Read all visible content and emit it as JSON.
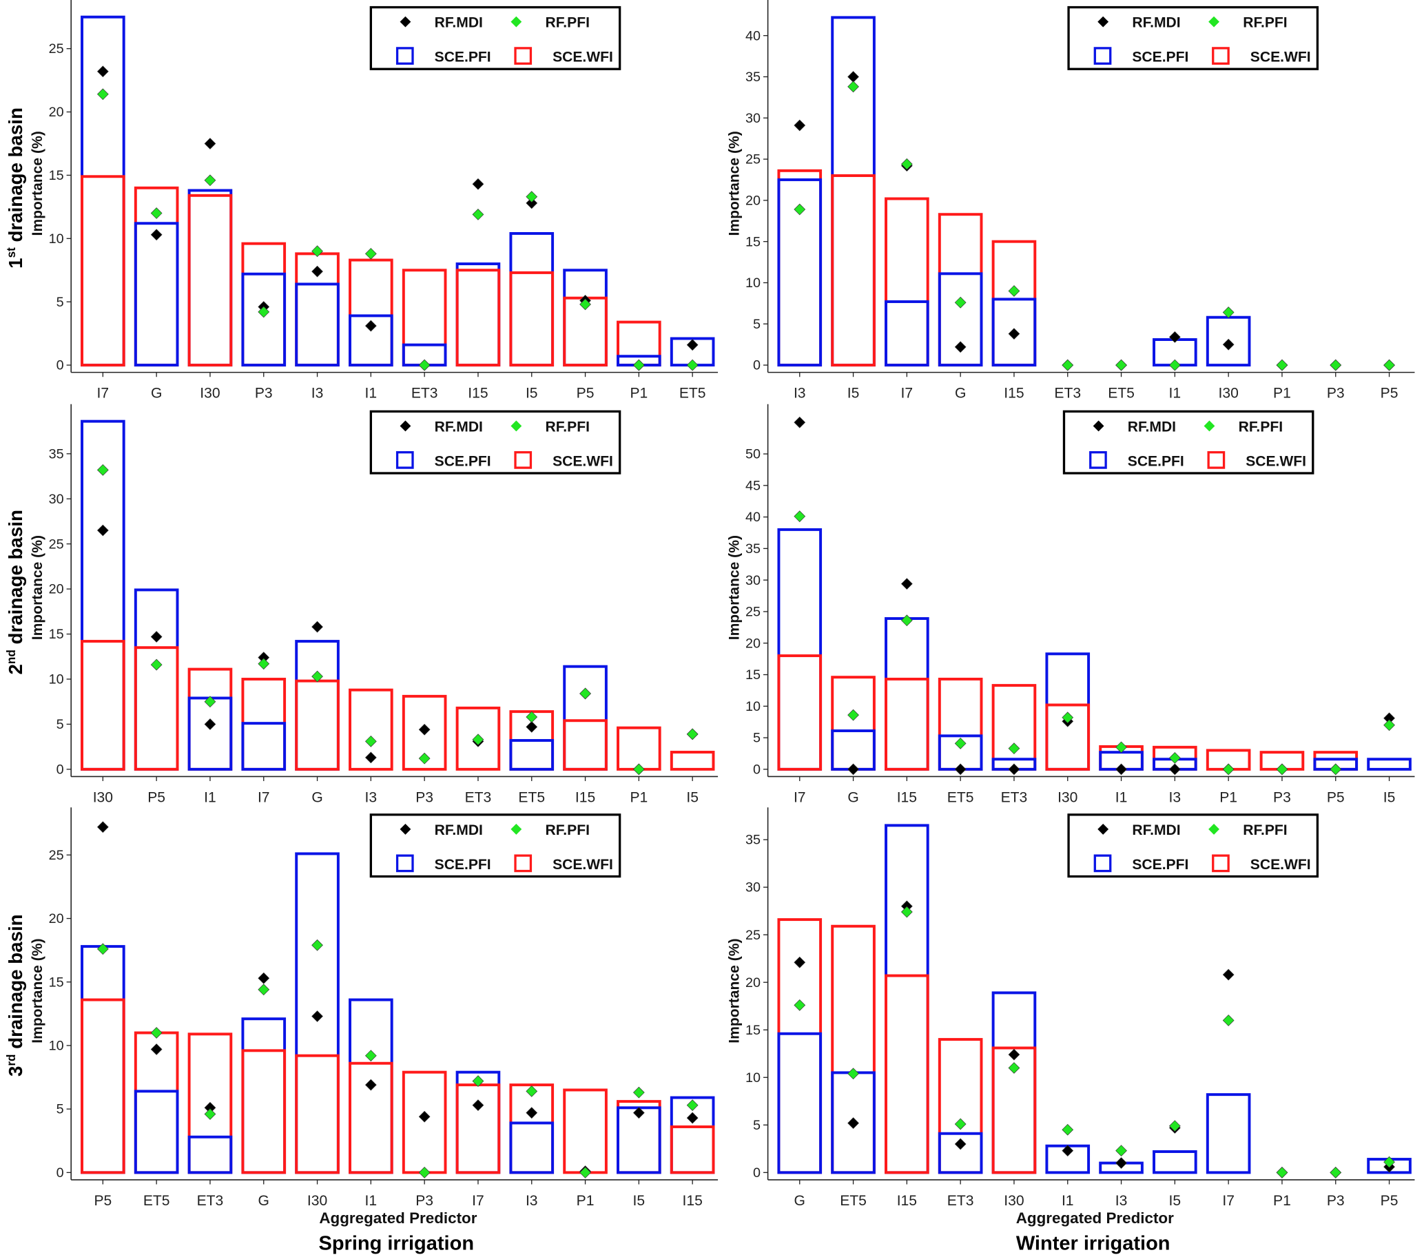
{
  "colors": {
    "sce_pfi": "#0a14e6",
    "sce_wfi": "#ff1a1a",
    "rf_mdi": "#000000",
    "rf_pfi": "#22e622"
  },
  "legend": {
    "rf_mdi": "RF.MDI",
    "rf_pfi": "RF.PFI",
    "sce_pfi": "SCE.PFI",
    "sce_wfi": "SCE.WFI"
  },
  "labels": {
    "ylabel": "Importance (%)",
    "xlabel": "Aggregated Predictor",
    "rows": [
      {
        "num": "1",
        "sup": "st",
        "text": " drainage basin"
      },
      {
        "num": "2",
        "sup": "nd",
        "text": " drainage basin"
      },
      {
        "num": "3",
        "sup": "rd",
        "text": " drainage basin"
      }
    ],
    "columns": [
      "Spring irrigation",
      "Winter irrigation"
    ]
  },
  "chart_data": [
    {
      "type": "bar",
      "row": 1,
      "column": "Spring irrigation",
      "ylim": [
        0,
        28.7
      ],
      "yticks": [
        0,
        5,
        10,
        15,
        20,
        25
      ],
      "categories": [
        "I7",
        "G",
        "I30",
        "P3",
        "I3",
        "I1",
        "ET3",
        "I15",
        "I5",
        "P5",
        "P1",
        "ET5"
      ],
      "series": [
        {
          "name": "SCE.PFI",
          "values": [
            27.5,
            11.2,
            13.8,
            7.2,
            6.4,
            3.9,
            1.6,
            8.0,
            10.4,
            7.5,
            0.7,
            2.1
          ]
        },
        {
          "name": "SCE.WFI",
          "values": [
            14.9,
            14.0,
            13.4,
            9.6,
            8.8,
            8.3,
            7.5,
            7.5,
            7.3,
            5.3,
            3.4,
            0
          ]
        },
        {
          "name": "RF.MDI",
          "values": [
            23.2,
            10.3,
            17.5,
            4.6,
            7.4,
            3.1,
            0,
            14.3,
            12.8,
            5.1,
            0,
            1.6
          ]
        },
        {
          "name": "RF.PFI",
          "values": [
            21.4,
            12.0,
            14.6,
            4.2,
            9.0,
            8.8,
            0,
            11.9,
            13.3,
            4.8,
            0,
            0
          ]
        }
      ]
    },
    {
      "type": "bar",
      "row": 1,
      "column": "Winter irrigation",
      "ylim": [
        0,
        44.1
      ],
      "yticks": [
        0,
        5,
        10,
        15,
        20,
        25,
        30,
        35,
        40
      ],
      "categories": [
        "I3",
        "I5",
        "I7",
        "G",
        "I15",
        "ET3",
        "ET5",
        "I1",
        "I30",
        "P1",
        "P3",
        "P5"
      ],
      "series": [
        {
          "name": "SCE.PFI",
          "values": [
            22.5,
            42.2,
            7.7,
            11.1,
            8.0,
            0,
            0,
            3.1,
            5.8,
            0,
            0,
            0
          ]
        },
        {
          "name": "SCE.WFI",
          "values": [
            23.6,
            23.0,
            20.2,
            18.3,
            15.0,
            0,
            0,
            0,
            0,
            0,
            0,
            0
          ]
        },
        {
          "name": "RF.MDI",
          "values": [
            29.1,
            35.0,
            24.2,
            2.2,
            3.8,
            0,
            0,
            3.4,
            2.5,
            0,
            0,
            0
          ]
        },
        {
          "name": "RF.PFI",
          "values": [
            18.9,
            33.8,
            24.4,
            7.6,
            9.0,
            0,
            0,
            0,
            6.4,
            0,
            0,
            0
          ]
        }
      ]
    },
    {
      "type": "bar",
      "row": 2,
      "column": "Spring irrigation",
      "ylim": [
        0,
        40.3
      ],
      "yticks": [
        0,
        5,
        10,
        15,
        20,
        25,
        30,
        35
      ],
      "categories": [
        "I30",
        "P5",
        "I1",
        "I7",
        "G",
        "I3",
        "P3",
        "ET3",
        "ET5",
        "I15",
        "P1",
        "I5"
      ],
      "series": [
        {
          "name": "SCE.PFI",
          "values": [
            38.6,
            19.9,
            7.9,
            5.1,
            14.2,
            0,
            0,
            0,
            3.2,
            11.4,
            0,
            0
          ]
        },
        {
          "name": "SCE.WFI",
          "values": [
            14.2,
            13.5,
            11.1,
            10.0,
            9.8,
            8.8,
            8.1,
            6.8,
            6.4,
            5.4,
            4.6,
            1.9
          ]
        },
        {
          "name": "RF.MDI",
          "values": [
            26.5,
            14.7,
            5.0,
            12.4,
            15.8,
            1.3,
            4.4,
            3.1,
            4.7,
            8.4,
            0,
            3.9
          ]
        },
        {
          "name": "RF.PFI",
          "values": [
            33.2,
            11.6,
            7.5,
            11.7,
            10.3,
            3.1,
            1.2,
            3.3,
            5.8,
            8.4,
            0,
            3.9
          ]
        }
      ]
    },
    {
      "type": "bar",
      "row": 2,
      "column": "Winter irrigation",
      "ylim": [
        0,
        57.6
      ],
      "yticks": [
        0,
        5,
        10,
        15,
        20,
        25,
        30,
        35,
        40,
        45,
        50
      ],
      "categories": [
        "I7",
        "G",
        "I15",
        "ET5",
        "ET3",
        "I30",
        "I1",
        "I3",
        "P1",
        "P3",
        "P5",
        "I5"
      ],
      "series": [
        {
          "name": "SCE.PFI",
          "values": [
            38.0,
            6.1,
            23.9,
            5.3,
            1.6,
            18.3,
            2.7,
            1.6,
            0,
            0,
            1.6,
            1.6
          ]
        },
        {
          "name": "SCE.WFI",
          "values": [
            18.0,
            14.6,
            14.3,
            14.3,
            13.3,
            10.2,
            3.6,
            3.5,
            3.0,
            2.7,
            2.7,
            0
          ]
        },
        {
          "name": "RF.MDI",
          "values": [
            55.0,
            0,
            29.4,
            0,
            0,
            7.6,
            0,
            0,
            0,
            0,
            0,
            8.1
          ]
        },
        {
          "name": "RF.PFI",
          "values": [
            40.1,
            8.6,
            23.6,
            4.1,
            3.3,
            8.2,
            3.5,
            1.8,
            0,
            0,
            0,
            7.0
          ]
        }
      ]
    },
    {
      "type": "bar",
      "row": 3,
      "column": "Spring irrigation",
      "ylim": [
        0,
        28.6
      ],
      "yticks": [
        0,
        5,
        10,
        15,
        20,
        25
      ],
      "categories": [
        "P5",
        "ET5",
        "ET3",
        "G",
        "I30",
        "I1",
        "P3",
        "I7",
        "I3",
        "P1",
        "I5",
        "I15"
      ],
      "series": [
        {
          "name": "SCE.PFI",
          "values": [
            17.8,
            6.4,
            2.8,
            12.1,
            25.1,
            13.6,
            0,
            7.9,
            3.9,
            0,
            5.1,
            5.9
          ]
        },
        {
          "name": "SCE.WFI",
          "values": [
            13.6,
            11.0,
            10.9,
            9.6,
            9.2,
            8.6,
            7.9,
            6.9,
            6.9,
            6.5,
            5.6,
            3.6
          ]
        },
        {
          "name": "RF.MDI",
          "values": [
            27.2,
            9.7,
            5.1,
            15.3,
            12.3,
            6.9,
            4.4,
            5.3,
            4.7,
            0.1,
            4.7,
            4.3
          ]
        },
        {
          "name": "RF.PFI",
          "values": [
            17.6,
            11.0,
            4.6,
            14.4,
            17.9,
            9.2,
            0,
            7.2,
            6.4,
            0,
            6.3,
            5.3
          ]
        }
      ]
    },
    {
      "type": "bar",
      "row": 3,
      "column": "Winter irrigation",
      "ylim": [
        0,
        38.2
      ],
      "yticks": [
        0,
        5,
        10,
        15,
        20,
        25,
        30,
        35
      ],
      "categories": [
        "G",
        "ET5",
        "I15",
        "ET3",
        "I30",
        "I1",
        "I3",
        "I5",
        "I7",
        "P1",
        "P3",
        "P5"
      ],
      "series": [
        {
          "name": "SCE.PFI",
          "values": [
            14.6,
            10.5,
            36.5,
            4.1,
            18.9,
            2.8,
            1.0,
            2.2,
            8.2,
            0,
            0,
            1.4
          ]
        },
        {
          "name": "SCE.WFI",
          "values": [
            26.6,
            25.9,
            20.7,
            14.0,
            13.1,
            0,
            0,
            0,
            0,
            0,
            0,
            0
          ]
        },
        {
          "name": "RF.MDI",
          "values": [
            22.1,
            5.2,
            28.0,
            3.0,
            12.4,
            2.3,
            1.0,
            4.7,
            20.8,
            0,
            0,
            0.6
          ]
        },
        {
          "name": "RF.PFI",
          "values": [
            17.6,
            10.4,
            27.4,
            5.1,
            11.0,
            4.5,
            2.3,
            4.9,
            16.0,
            0,
            0,
            1.1
          ]
        }
      ]
    }
  ]
}
